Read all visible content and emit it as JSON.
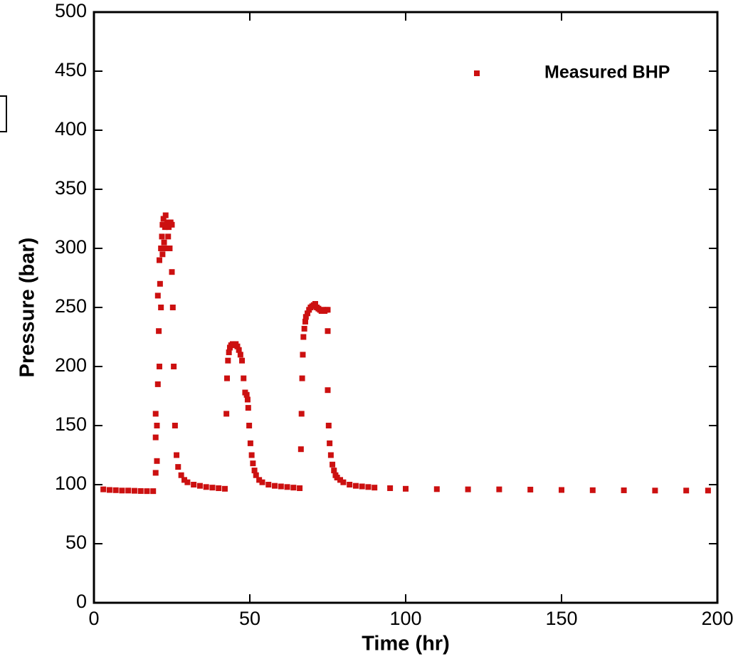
{
  "chart_data": {
    "type": "scatter",
    "x_label": "Time (hr)",
    "y_label": "Pressure (bar)",
    "xlim": [
      0,
      200
    ],
    "ylim": [
      0,
      500
    ],
    "xticks": [
      0,
      50,
      100,
      150,
      200
    ],
    "yticks": [
      0,
      50,
      100,
      150,
      200,
      250,
      300,
      350,
      400,
      450,
      500
    ],
    "legend": "upper right",
    "series": [
      {
        "name": "Measured BHP",
        "color": "#cc1010",
        "x": [
          3,
          5,
          7,
          9,
          11,
          13,
          15,
          17,
          19,
          19.8,
          19.8,
          19.8,
          20.2,
          20.2,
          20.5,
          20.5,
          20.8,
          21,
          21,
          21.2,
          21.5,
          21.5,
          21.8,
          22,
          22,
          22.3,
          22.5,
          22.8,
          23,
          23.2,
          23.5,
          23.8,
          24,
          24.3,
          24.6,
          25,
          25,
          25.3,
          25.6,
          26,
          26.5,
          27,
          28,
          29,
          30,
          32,
          34,
          36,
          38,
          40,
          42,
          42.5,
          42.7,
          43,
          43.3,
          43.6,
          44,
          44.5,
          45,
          45.5,
          46,
          46.5,
          47,
          47.5,
          48,
          48.5,
          49,
          49.3,
          49.5,
          49.8,
          50.2,
          50.6,
          51,
          51.5,
          52,
          53,
          54,
          56,
          58,
          60,
          62,
          64,
          66,
          66.4,
          66.6,
          66.8,
          67,
          67.2,
          67.5,
          67.8,
          68,
          68.5,
          69,
          69.5,
          70,
          70.5,
          71,
          71.5,
          72,
          72.5,
          73,
          73.5,
          74,
          74.5,
          75,
          75,
          75,
          75.3,
          75.6,
          76,
          76.5,
          77,
          77.5,
          78,
          79,
          80,
          82,
          84,
          86,
          88,
          90,
          95,
          100,
          110,
          120,
          130,
          140,
          150,
          160,
          170,
          180,
          190,
          197
        ],
        "y": [
          96,
          95.5,
          95.3,
          95,
          95,
          94.8,
          94.6,
          94.5,
          94.5,
          110,
          140,
          160,
          150,
          120,
          185,
          260,
          230,
          200,
          290,
          270,
          300,
          250,
          310,
          320,
          295,
          325,
          305,
          318,
          328,
          300,
          322,
          310,
          318,
          300,
          322,
          320,
          280,
          250,
          200,
          150,
          125,
          115,
          108,
          104,
          102,
          100,
          99,
          98,
          97.5,
          97,
          96.5,
          160,
          190,
          205,
          212,
          216,
          218,
          219,
          218,
          219,
          217,
          214,
          210,
          205,
          190,
          178,
          176,
          172,
          165,
          150,
          135,
          125,
          118,
          112,
          108,
          104,
          102,
          100,
          99,
          98.5,
          98,
          97.5,
          97,
          130,
          160,
          190,
          210,
          225,
          232,
          238,
          242,
          245,
          248,
          250,
          251,
          252,
          253,
          250,
          249,
          248,
          247,
          248,
          247,
          248,
          248,
          230,
          180,
          150,
          135,
          125,
          117,
          112,
          108,
          106,
          104,
          102,
          100,
          99,
          98.5,
          98,
          97.5,
          97,
          96.5,
          96.2,
          96,
          96,
          95.8,
          95.5,
          95.3,
          95.2,
          95,
          95,
          95
        ]
      }
    ]
  }
}
